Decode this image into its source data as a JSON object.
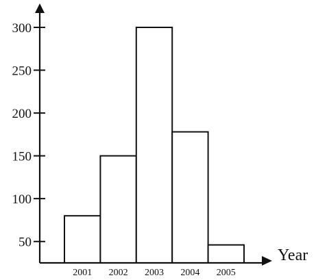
{
  "chart_data": {
    "type": "bar",
    "title": "",
    "xlabel": "Year",
    "ylabel": "",
    "categories": [
      "2001",
      "2002",
      "2003",
      "2004",
      "2005"
    ],
    "values": [
      80,
      150,
      300,
      178,
      46
    ],
    "yticks": [
      50,
      100,
      150,
      200,
      250,
      300
    ],
    "ylim": [
      25,
      300
    ],
    "grid": false,
    "legend": "none",
    "colors": {
      "bar_fill": "#ffffff",
      "bar_stroke": "#111111",
      "axis": "#111111"
    }
  }
}
